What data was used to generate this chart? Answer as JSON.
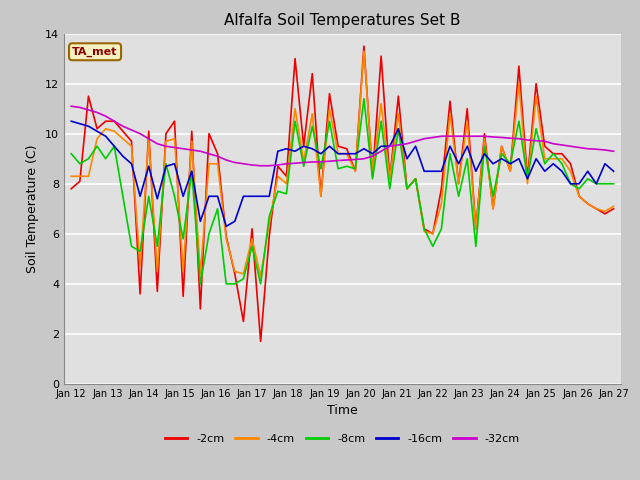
{
  "title": "Alfalfa Soil Temperatures Set B",
  "xlabel": "Time",
  "ylabel": "Soil Temperature (C)",
  "ylim": [
    0,
    14
  ],
  "yticks": [
    0,
    2,
    4,
    6,
    8,
    10,
    12,
    14
  ],
  "fig_facecolor": "#c8c8c8",
  "plot_facecolor": "#e0e0e0",
  "annotation_text": "TA_met",
  "annotation_color": "#8B0000",
  "annotation_bg": "#f5f0c0",
  "annotation_edge": "#996600",
  "series": {
    "-2cm": {
      "color": "#ee0000",
      "lw": 1.2
    },
    "-4cm": {
      "color": "#ff8800",
      "lw": 1.2
    },
    "-8cm": {
      "color": "#00cc00",
      "lw": 1.2
    },
    "-16cm": {
      "color": "#0000cc",
      "lw": 1.2
    },
    "-32cm": {
      "color": "#cc00cc",
      "lw": 1.2
    }
  },
  "x_labels": [
    "Jan 12",
    "Jan 13",
    "Jan 14",
    "Jan 15",
    "Jan 16",
    "Jan 17",
    "Jan 18",
    "Jan 19",
    "Jan 20",
    "Jan 21",
    "Jan 22",
    "Jan 23",
    "Jan 24",
    "Jan 25",
    "Jan 26",
    "Jan 27"
  ],
  "data_2cm": [
    7.8,
    8.1,
    11.5,
    10.2,
    10.5,
    10.5,
    10.1,
    9.7,
    3.6,
    10.1,
    3.7,
    10.0,
    10.5,
    3.5,
    10.1,
    3.0,
    10.0,
    9.2,
    5.9,
    4.4,
    2.5,
    6.2,
    1.7,
    5.9,
    8.7,
    8.3,
    13.0,
    9.5,
    12.4,
    7.5,
    11.6,
    9.5,
    9.4,
    8.5,
    13.5,
    8.3,
    13.1,
    8.2,
    11.5,
    7.8,
    8.2,
    6.2,
    6.0,
    7.8,
    11.3,
    8.0,
    11.0,
    6.2,
    10.0,
    7.0,
    9.5,
    8.5,
    12.7,
    8.2,
    12.0,
    9.5,
    9.2,
    9.2,
    8.8,
    7.5,
    7.2,
    7.0,
    6.8,
    7.0
  ],
  "data_4cm": [
    8.3,
    8.3,
    8.3,
    9.8,
    10.2,
    10.1,
    9.8,
    9.5,
    4.7,
    9.8,
    4.5,
    9.7,
    9.8,
    4.5,
    9.7,
    4.4,
    8.8,
    8.8,
    5.8,
    4.5,
    4.4,
    5.8,
    4.3,
    6.4,
    8.3,
    8.0,
    11.0,
    8.9,
    10.8,
    7.5,
    11.0,
    9.2,
    9.2,
    8.5,
    13.3,
    8.5,
    11.2,
    8.2,
    10.8,
    7.8,
    8.2,
    6.1,
    6.0,
    7.2,
    10.8,
    8.0,
    10.5,
    6.2,
    9.8,
    7.0,
    9.5,
    8.5,
    12.0,
    8.0,
    11.5,
    9.0,
    9.0,
    9.0,
    8.5,
    7.5,
    7.2,
    7.0,
    6.9,
    7.1
  ],
  "data_8cm": [
    9.2,
    8.8,
    9.0,
    9.5,
    9.0,
    9.5,
    7.5,
    5.5,
    5.3,
    7.5,
    5.5,
    8.8,
    7.5,
    5.8,
    8.5,
    4.0,
    6.0,
    7.0,
    4.0,
    4.0,
    4.2,
    5.5,
    4.0,
    6.7,
    7.7,
    7.6,
    10.5,
    8.7,
    10.3,
    8.6,
    10.5,
    8.6,
    8.7,
    8.6,
    11.4,
    8.2,
    10.5,
    7.8,
    10.2,
    7.8,
    8.2,
    6.2,
    5.5,
    6.2,
    9.2,
    7.5,
    9.0,
    5.5,
    9.5,
    7.5,
    9.2,
    8.8,
    10.5,
    8.2,
    10.2,
    8.8,
    9.2,
    8.8,
    8.0,
    7.8,
    8.2,
    8.0,
    8.0,
    8.0
  ],
  "data_16cm": [
    10.5,
    10.4,
    10.3,
    10.1,
    9.9,
    9.5,
    9.1,
    8.8,
    7.5,
    8.7,
    7.4,
    8.7,
    8.8,
    7.5,
    8.5,
    6.5,
    7.5,
    7.5,
    6.3,
    6.5,
    7.5,
    7.5,
    7.5,
    7.5,
    9.3,
    9.4,
    9.3,
    9.5,
    9.4,
    9.2,
    9.5,
    9.2,
    9.2,
    9.2,
    9.4,
    9.2,
    9.5,
    9.5,
    10.2,
    9.0,
    9.5,
    8.5,
    8.5,
    8.5,
    9.5,
    8.8,
    9.5,
    8.5,
    9.2,
    8.8,
    9.0,
    8.8,
    9.0,
    8.2,
    9.0,
    8.5,
    8.8,
    8.5,
    8.0,
    8.0,
    8.5,
    8.0,
    8.8,
    8.5
  ],
  "data_32cm": [
    11.1,
    11.05,
    10.95,
    10.85,
    10.7,
    10.5,
    10.3,
    10.15,
    10.0,
    9.8,
    9.6,
    9.5,
    9.45,
    9.4,
    9.35,
    9.3,
    9.2,
    9.1,
    8.95,
    8.85,
    8.8,
    8.75,
    8.72,
    8.72,
    8.75,
    8.8,
    8.82,
    8.85,
    8.87,
    8.88,
    8.9,
    8.93,
    8.95,
    8.97,
    9.0,
    9.1,
    9.3,
    9.5,
    9.55,
    9.6,
    9.7,
    9.8,
    9.85,
    9.9,
    9.9,
    9.9,
    9.9,
    9.9,
    9.9,
    9.87,
    9.85,
    9.82,
    9.8,
    9.75,
    9.72,
    9.7,
    9.6,
    9.55,
    9.5,
    9.45,
    9.4,
    9.38,
    9.35,
    9.3
  ]
}
